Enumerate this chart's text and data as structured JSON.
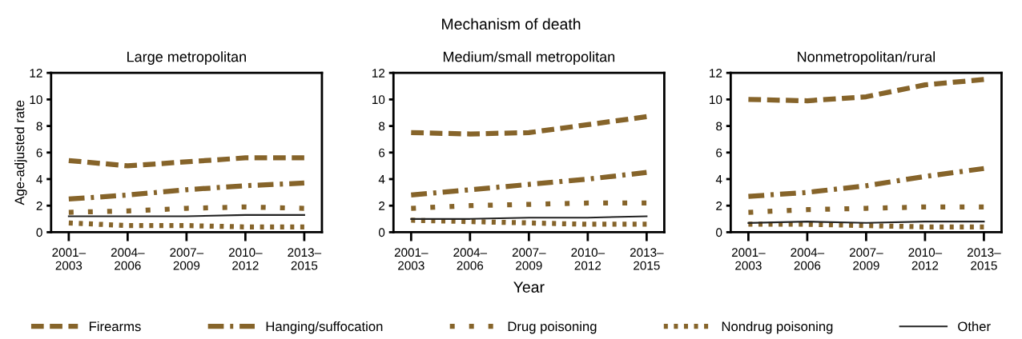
{
  "chart_data": [
    {
      "type": "line",
      "title": "Large metropolitan",
      "ylabel": "Age-adjusted rate",
      "annotations": [
        "Mechanism of death"
      ],
      "legend": "bottom",
      "categories": [
        "2001–\n2003",
        "2004–\n2006",
        "2007–\n2009",
        "2010–\n2012",
        "2013–\n2015"
      ],
      "ylim": [
        0,
        12
      ],
      "yticks": [
        0,
        2,
        4,
        6,
        8,
        10,
        12
      ],
      "grid": false,
      "series": [
        {
          "name": "Firearms",
          "color": "#86642a",
          "line_style": "dashed",
          "values": [
            5.4,
            5.0,
            5.3,
            5.6,
            5.6
          ]
        },
        {
          "name": "Hanging/suffocation",
          "color": "#86642a",
          "line_style": "dashdot",
          "values": [
            2.5,
            2.8,
            3.2,
            3.5,
            3.7
          ]
        },
        {
          "name": "Drug poisoning",
          "color": "#86642a",
          "line_style": "dotted",
          "values": [
            1.5,
            1.6,
            1.8,
            1.9,
            1.8
          ]
        },
        {
          "name": "Nondrug poisoning",
          "color": "#86642a",
          "line_style": "densely dotted",
          "values": [
            0.7,
            0.5,
            0.5,
            0.4,
            0.4
          ]
        },
        {
          "name": "Other",
          "color": "#222222",
          "line_style": "solid",
          "values": [
            1.2,
            1.2,
            1.2,
            1.3,
            1.3
          ]
        }
      ]
    },
    {
      "type": "line",
      "title": "Medium/small metropolitan",
      "xlabel": "Year",
      "categories": [
        "2001–\n2003",
        "2004–\n2006",
        "2007–\n2009",
        "2010–\n2012",
        "2013–\n2015"
      ],
      "ylim": [
        0,
        12
      ],
      "yticks": [
        0,
        2,
        4,
        6,
        8,
        10,
        12
      ],
      "grid": false,
      "series": [
        {
          "color": "#86642a",
          "line_style": "dashed",
          "values": [
            7.5,
            7.4,
            7.5,
            8.1,
            8.7
          ]
        },
        {
          "color": "#86642a",
          "line_style": "dashdot",
          "values": [
            2.8,
            3.2,
            3.6,
            4.0,
            4.5
          ]
        },
        {
          "color": "#86642a",
          "line_style": "dotted",
          "values": [
            1.8,
            2.0,
            2.1,
            2.2,
            2.2
          ]
        },
        {
          "color": "#86642a",
          "line_style": "densely dotted",
          "values": [
            0.9,
            0.8,
            0.7,
            0.6,
            0.6
          ]
        },
        {
          "color": "#222222",
          "line_style": "solid",
          "values": [
            1.0,
            1.0,
            1.1,
            1.1,
            1.2
          ]
        }
      ]
    },
    {
      "type": "line",
      "title": "Nonmetropolitan/rural",
      "categories": [
        "2001–\n2003",
        "2004–\n2006",
        "2007–\n2009",
        "2010–\n2012",
        "2013–\n2015"
      ],
      "ylim": [
        0,
        12
      ],
      "yticks": [
        0,
        2,
        4,
        6,
        8,
        10,
        12
      ],
      "grid": false,
      "series": [
        {
          "color": "#86642a",
          "line_style": "dashed",
          "values": [
            10.0,
            9.9,
            10.2,
            11.1,
            11.5
          ]
        },
        {
          "color": "#86642a",
          "line_style": "dashdot",
          "values": [
            2.7,
            3.0,
            3.5,
            4.2,
            4.8
          ]
        },
        {
          "color": "#86642a",
          "line_style": "dotted",
          "values": [
            1.5,
            1.7,
            1.8,
            1.9,
            1.9
          ]
        },
        {
          "color": "#86642a",
          "line_style": "densely dotted",
          "values": [
            0.6,
            0.6,
            0.5,
            0.4,
            0.4
          ]
        },
        {
          "color": "#222222",
          "line_style": "solid",
          "values": [
            0.7,
            0.8,
            0.7,
            0.8,
            0.8
          ]
        }
      ]
    }
  ]
}
